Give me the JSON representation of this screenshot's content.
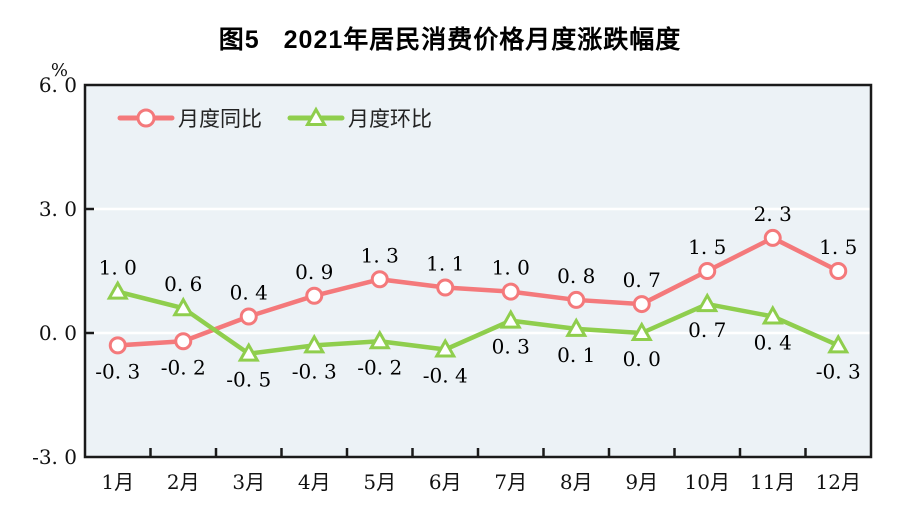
{
  "title": {
    "figure_label": "图5",
    "text": "2021年居民消费价格月度涨跌幅度"
  },
  "chart_data": {
    "type": "line",
    "title": "图5 2021年居民消费价格月度涨跌幅度",
    "unit": "%",
    "categories": [
      "1月",
      "2月",
      "3月",
      "4月",
      "5月",
      "6月",
      "7月",
      "8月",
      "9月",
      "10月",
      "11月",
      "12月"
    ],
    "series": [
      {
        "name": "月度同比",
        "marker": "circle",
        "color": "#F4797B",
        "values": [
          -0.3,
          -0.2,
          0.4,
          0.9,
          1.3,
          1.1,
          1.0,
          0.8,
          0.7,
          1.5,
          2.3,
          1.5
        ],
        "label_side": [
          "below",
          "below",
          "above",
          "above",
          "above",
          "above",
          "above",
          "above",
          "above",
          "above",
          "above",
          "above"
        ]
      },
      {
        "name": "月度环比",
        "marker": "triangle",
        "color": "#8FCE4D",
        "values": [
          1.0,
          0.6,
          -0.5,
          -0.3,
          -0.2,
          -0.4,
          0.3,
          0.1,
          0.0,
          0.7,
          0.4,
          -0.3
        ],
        "label_side": [
          "above",
          "above",
          "below",
          "below",
          "below",
          "below",
          "below",
          "below",
          "below",
          "below",
          "below",
          "below"
        ]
      }
    ],
    "ylim": [
      -3.0,
      6.0
    ],
    "yticks": [
      6.0,
      3.0,
      0.0,
      -3.0
    ],
    "ytick_labels": [
      "6.0",
      "3.0",
      "0.0",
      "-3.0"
    ],
    "xlabel": "",
    "ylabel": "%",
    "grid": "horizontal-white-lines",
    "legend_position": "top-left-inside",
    "colors": {
      "plot_background": "#ECF2F6",
      "grid_line": "#FFFFFF",
      "axis": "#1A1A1A",
      "label_text": "#000000"
    }
  }
}
